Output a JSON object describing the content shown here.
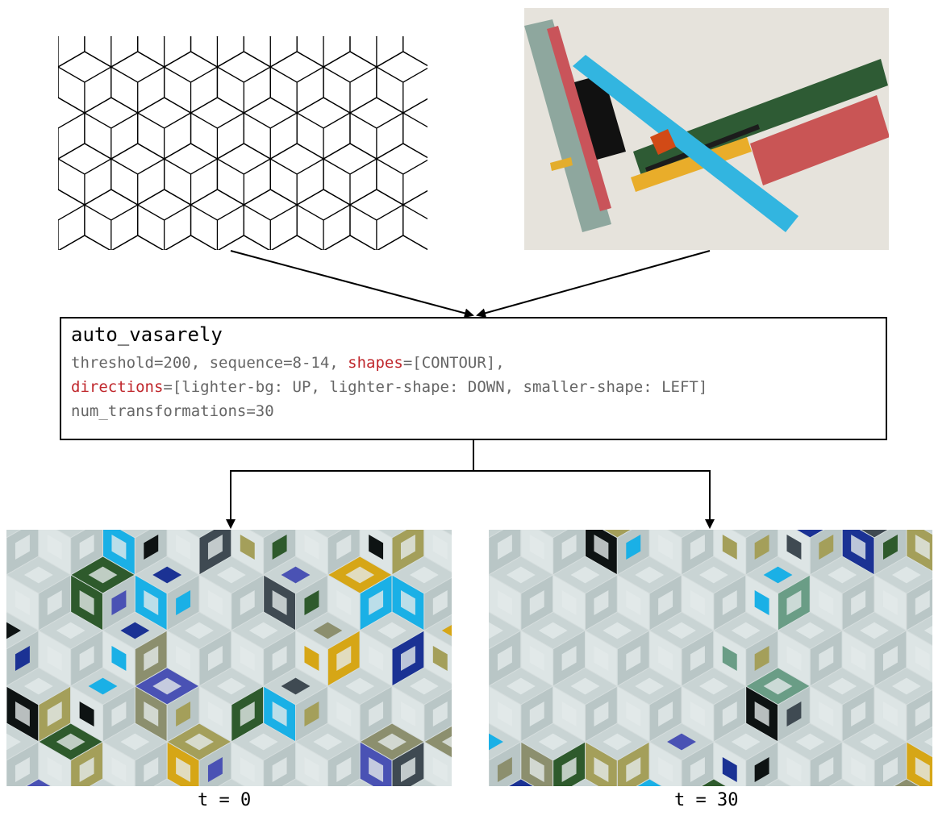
{
  "inputs": {
    "pattern_image": "cube-lattice-pattern",
    "painting_image": "suprematist-painting"
  },
  "config": {
    "name": "auto_vasarely",
    "threshold_text": "threshold=200, sequence=8-14, ",
    "shapes_key": "shapes",
    "shapes_val": "=[CONTOUR],",
    "directions_key": "directions",
    "directions_val": "=[lighter-bg: UP, lighter-shape: DOWN, smaller-shape: LEFT]",
    "num_text": "num_transformations=30"
  },
  "outputs": [
    {
      "caption": "t = 0"
    },
    {
      "caption": "t = 30"
    }
  ],
  "colors": {
    "keyword": "#c0282d",
    "config_text": "#666666",
    "palette": [
      "#2e5a2c",
      "#d6a616",
      "#4a52b4",
      "#1ab0e6",
      "#8c8f6e",
      "#3f4a52",
      "#0e1313",
      "#6a9d86",
      "#a49f5a",
      "#1b3294"
    ]
  }
}
